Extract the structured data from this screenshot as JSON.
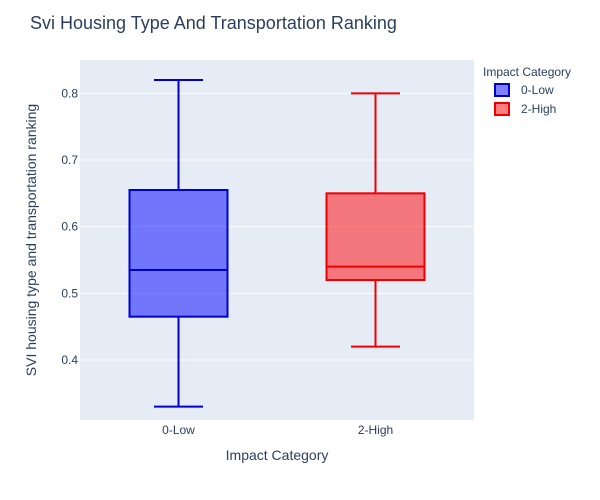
{
  "chart_data": {
    "type": "box",
    "title": "Svi Housing Type And Transportation Ranking",
    "xlabel": "Impact Category",
    "ylabel": "SVI housing type and transportation ranking",
    "categories": [
      "0-Low",
      "2-High"
    ],
    "ylim": [
      0.31,
      0.85
    ],
    "yticks": [
      "0.4",
      "0.5",
      "0.6",
      "0.7",
      "0.8"
    ],
    "grid": true,
    "legend": {
      "title": "Impact Category",
      "placement": "top-right",
      "items": [
        "0-Low",
        "2-High"
      ]
    },
    "series": [
      {
        "name": "0-Low",
        "category": "0-Low",
        "min": 0.33,
        "q1": 0.465,
        "median": 0.535,
        "q3": 0.655,
        "max": 0.82,
        "color": "#0000ff",
        "line_color": "#0000cc"
      },
      {
        "name": "2-High",
        "category": "2-High",
        "min": 0.42,
        "q1": 0.52,
        "median": 0.54,
        "q3": 0.65,
        "max": 0.8,
        "color": "#ff0000",
        "line_color": "#ee0000"
      }
    ]
  }
}
